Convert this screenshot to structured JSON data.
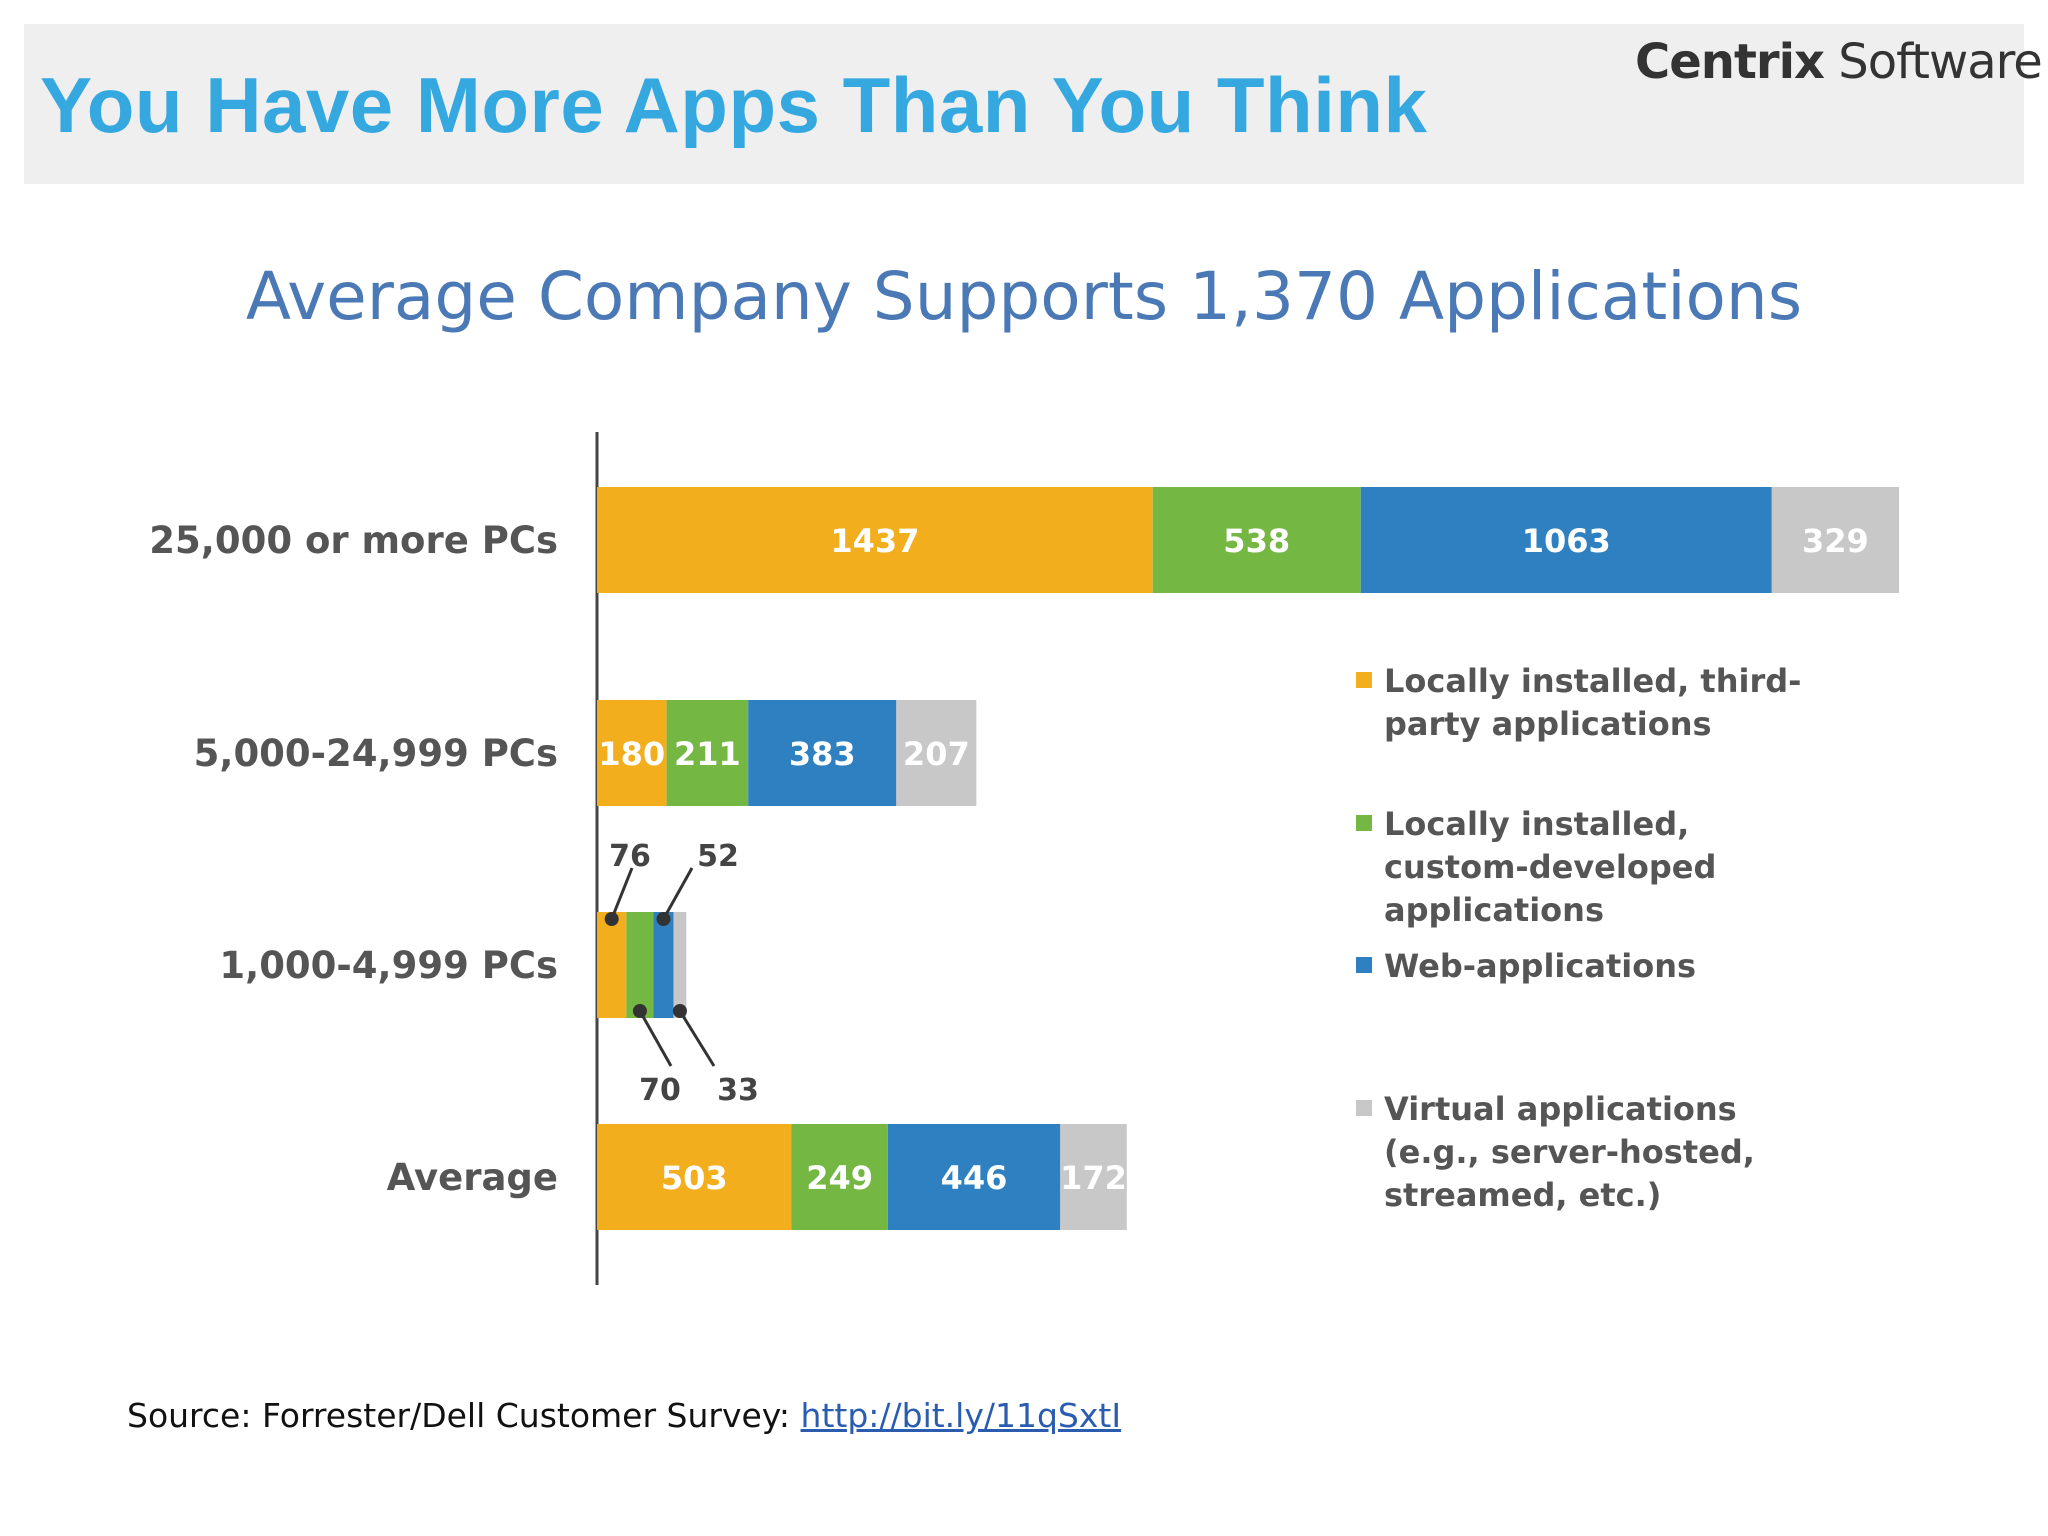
{
  "slide": {
    "title": "You Have More Apps Than You Think",
    "brand_strong": "Centrix",
    "brand_rest": " Software"
  },
  "chart_data": {
    "type": "bar",
    "orientation": "horizontal",
    "stacked": true,
    "title": "Average Company Supports 1,370 Applications",
    "categories": [
      "25,000 or more PCs",
      "5,000-24,999 PCs",
      "1,000-4,999 PCs",
      "Average"
    ],
    "series": [
      {
        "name": "Locally installed, third-party applications",
        "color": "#f2ae1c",
        "values": [
          1437,
          180,
          76,
          503
        ]
      },
      {
        "name": "Locally installed, custom-developed applications",
        "color": "#74b843",
        "values": [
          538,
          211,
          70,
          249
        ]
      },
      {
        "name": "Web-applications",
        "color": "#2e80c0",
        "values": [
          1063,
          383,
          52,
          446
        ]
      },
      {
        "name": "Virtual applications (e.g., server-hosted, streamed, etc.)",
        "color": "#c8c8c8",
        "values": [
          329,
          207,
          33,
          172
        ]
      }
    ],
    "legend": {
      "position": "right",
      "lines": [
        [
          "Locally installed, third-",
          "party applications"
        ],
        [
          "Locally installed,",
          "custom-developed",
          "applications"
        ],
        [
          "Web-applications"
        ],
        [
          "Virtual applications",
          "(e.g., server-hosted,",
          "streamed, etc.)"
        ]
      ]
    },
    "grid": false
  },
  "source": {
    "label": "Source: Forrester/Dell Customer Survey: ",
    "link": "http://bit.ly/11qSxtI"
  }
}
